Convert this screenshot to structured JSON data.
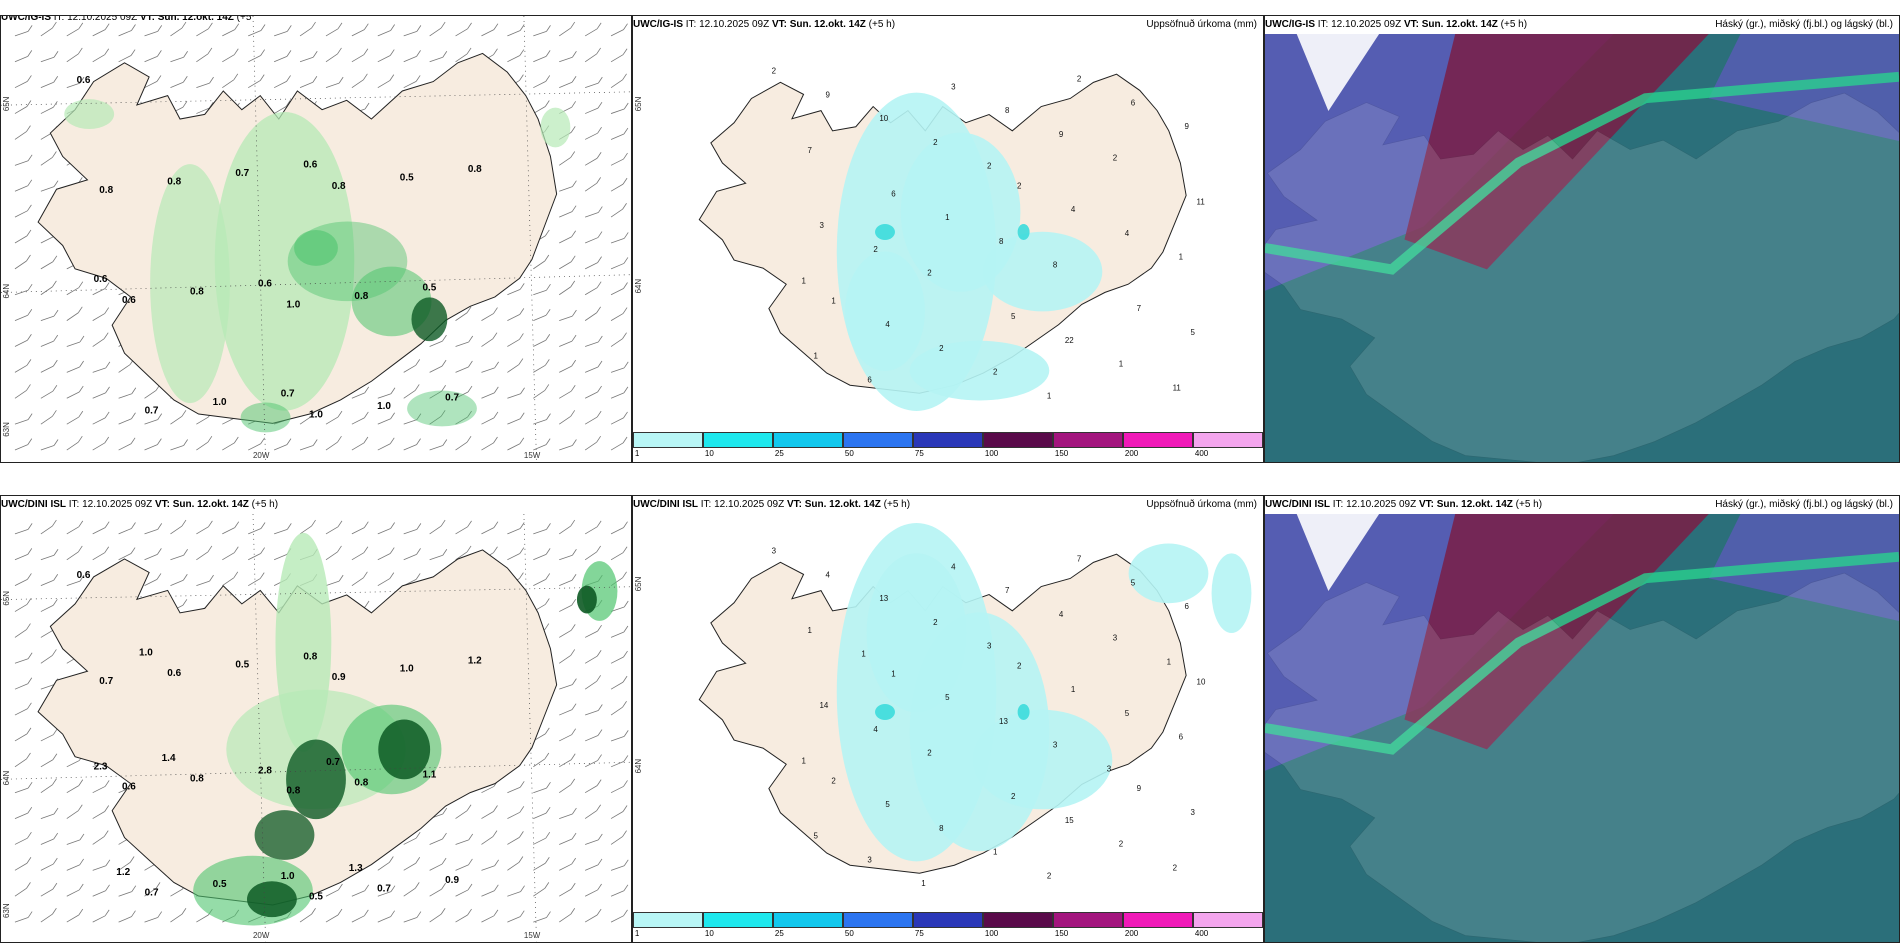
{
  "colors": {
    "land": "#f7ece0",
    "coast": "#222222",
    "precip_light": "#b5f4f4",
    "precip_mid": "#3cdcdc",
    "green_light": "#b6eab6",
    "green_mid": "#4ec46e",
    "green_dark": "#0d5a24",
    "cloud_high": "#7a1d45",
    "cloud_mid": "#5a5bb8",
    "cloud_low": "#2b6f7a",
    "cloud_front": "#29d18e"
  },
  "colorbar": {
    "ticks": [
      "1",
      "10",
      "25",
      "50",
      "75",
      "100",
      "150",
      "200",
      "400"
    ],
    "colors": [
      "#b8f6f6",
      "#1ee8ee",
      "#12c8ee",
      "#2b74f0",
      "#2a37b8",
      "#5a0a4a",
      "#a3157e",
      "#f01ab8",
      "#f4a6ee"
    ]
  },
  "rows": [
    {
      "model": "UWC/IG-IS",
      "panels": [
        {
          "title_model": "UWC/IG-IS",
          "title_it": " IT: 12.10.2025 09Z",
          "title_vt": " VT: Sun. 12.okt. 14Z",
          "title_lead": " (+5",
          "title_extra": "h)",
          "right_label": "",
          "axis_labels": [
            "65N",
            "64N",
            "63N",
            "20W",
            "15W"
          ],
          "values": [
            "0.6",
            "1.0",
            "0.8",
            "1.0",
            "0.6",
            "0.8",
            "0.7",
            "0.8",
            "0.8",
            "1.0",
            "0.8",
            "0.5",
            "1.0",
            "0.5",
            "0.7",
            "0.7",
            "0.6",
            "0.8",
            "0.7",
            "0.6",
            "0.6"
          ]
        },
        {
          "title_model": "UWC/IG-IS",
          "title_it": " IT: 12.10.2025 09Z",
          "title_vt": " VT: Sun. 12.okt. 14Z",
          "title_lead": " (+5 h)",
          "right_label": "Uppsöfnuð úrkoma (mm)",
          "axis_labels": [
            "65N",
            "64N"
          ],
          "values": [
            "2",
            "2",
            "1",
            "2",
            "6",
            "7",
            "3",
            "11",
            "5",
            "9",
            "4",
            "4",
            "6",
            "1",
            "5",
            "8",
            "3",
            "22",
            "10",
            "4",
            "2",
            "9",
            "8",
            "1",
            "9",
            "2",
            "1",
            "2",
            "1",
            "2",
            "7",
            "8",
            "6",
            "2",
            "2",
            "11",
            "2",
            "1",
            "1"
          ]
        },
        {
          "title_model": "UWC/IG-IS",
          "title_it": " IT: 12.10.2025 09Z",
          "title_vt": " VT: Sun. 12.okt. 14Z",
          "title_lead": " (+5 h)",
          "right_label": "Háský (gr.), miðský (fj.bl.) og lágský (bl.)",
          "axis_labels": [],
          "values": []
        }
      ]
    },
    {
      "model": "UWC/DINI ISL",
      "panels": [
        {
          "title_model": "UWC/DINI ISL",
          "title_it": " IT: 12.10.2025 09Z",
          "title_vt": " VT: Sun. 12.okt. 14Z",
          "title_lead": " (+5 h)",
          "right_label": "",
          "axis_labels": [
            "65N",
            "64N",
            "63N",
            "20W",
            "15W"
          ],
          "values": [
            "0.6",
            "0.8",
            "0.7",
            "0.5",
            "0.6",
            "0.9",
            "0.7",
            "0.8",
            "0.6",
            "0.7",
            "0.8",
            "1.0",
            "0.5",
            "1.1",
            "0.5",
            "0.9",
            "2.8",
            "1.2",
            "1.0",
            "2.3",
            "0.8",
            "1.2",
            "0.7",
            "1.0",
            "1.3",
            "1.4"
          ]
        },
        {
          "title_model": "UWC/DINI ISL",
          "title_it": " IT: 12.10.2025 09Z",
          "title_vt": " VT: Sun. 12.okt. 14Z",
          "title_lead": " (+5 h)",
          "right_label": "Uppsöfnuð úrkoma (mm)",
          "axis_labels": [
            "65N",
            "64N"
          ],
          "values": [
            "3",
            "2",
            "2",
            "7",
            "1",
            "9",
            "4",
            "10",
            "2",
            "4",
            "1",
            "5",
            "5",
            "5",
            "3",
            "7",
            "14",
            "15",
            "13",
            "5",
            "8",
            "6",
            "13",
            "5",
            "4",
            "4",
            "2",
            "2",
            "6",
            "1",
            "1",
            "3",
            "3",
            "3",
            "2",
            "2",
            "3",
            "1",
            "2",
            "1",
            "3",
            "1",
            "1"
          ]
        },
        {
          "title_model": "UWC/DINI ISL",
          "title_it": " IT: 12.10.2025 09Z",
          "title_vt": " VT: Sun. 12.okt. 14Z",
          "title_lead": " (+5 h)",
          "right_label": "Háský (gr.), miðský (fj.bl.) og lágský (bl.)",
          "axis_labels": [],
          "values": []
        }
      ]
    }
  ]
}
